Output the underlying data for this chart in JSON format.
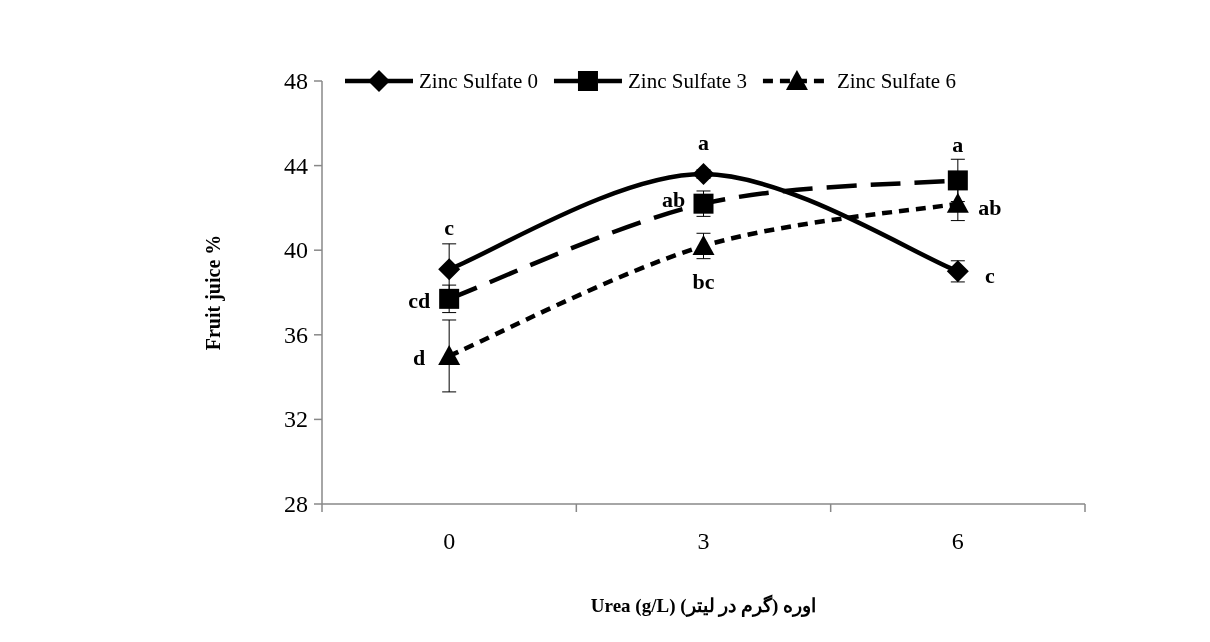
{
  "chart_data": {
    "type": "line",
    "xlabel": "Urea (g/L)  اوره (گرم در لیتر)",
    "ylabel": "Fruit juice %",
    "categories": [
      "0",
      "3",
      "6"
    ],
    "series": [
      {
        "name": "Zinc Sulfate 0",
        "color": "#000000",
        "marker": "diamond",
        "line_style": "solid",
        "values": [
          39.1,
          43.6,
          39.0
        ],
        "errors": [
          1.2,
          0.2,
          0.5
        ]
      },
      {
        "name": "Zinc Sulfate 3",
        "color": "#000000",
        "marker": "square",
        "line_style": "dashed",
        "values": [
          37.7,
          42.2,
          43.3
        ],
        "errors": [
          0.65,
          0.6,
          1.0
        ]
      },
      {
        "name": "Zinc Sulfate 6",
        "color": "#000000",
        "marker": "triangle",
        "line_style": "dotted",
        "values": [
          35.0,
          40.2,
          42.2
        ],
        "errors": [
          1.7,
          0.6,
          0.8
        ]
      }
    ],
    "ylim": [
      28,
      48
    ],
    "yticks": [
      28,
      32,
      36,
      40,
      44,
      48
    ],
    "legend": "top",
    "grid": false,
    "annotations": [
      {
        "text": "c",
        "x": "0",
        "y": 39.1
      },
      {
        "text": "cd",
        "x": "0",
        "y": 37.7
      },
      {
        "text": "d",
        "x": "0",
        "y": 35.0
      },
      {
        "text": "a",
        "x": "3",
        "y": 43.6
      },
      {
        "text": "ab",
        "x": "3",
        "y": 42.2
      },
      {
        "text": "bc",
        "x": "3",
        "y": 40.2
      },
      {
        "text": "a",
        "x": "6",
        "y": 43.3
      },
      {
        "text": "ab",
        "x": "6",
        "y": 42.2
      },
      {
        "text": "c",
        "x": "6",
        "y": 39.0
      }
    ]
  }
}
